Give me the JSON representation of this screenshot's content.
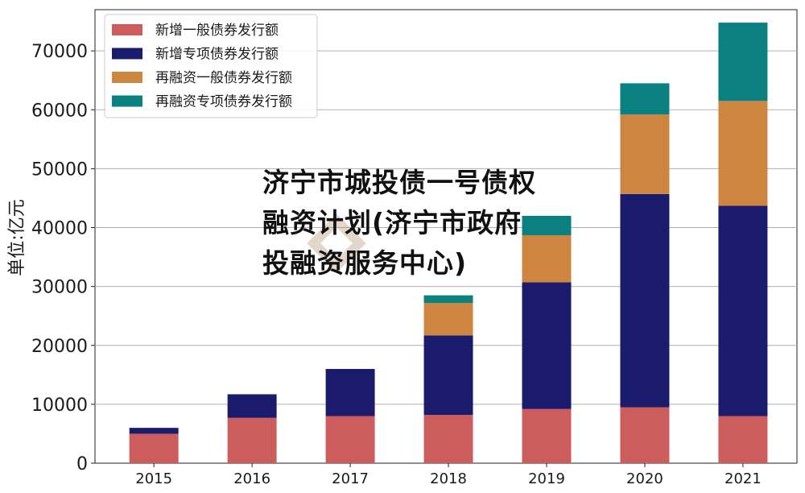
{
  "chart_data": {
    "type": "bar",
    "stacked": true,
    "categories": [
      "2015",
      "2016",
      "2017",
      "2018",
      "2019",
      "2020",
      "2021"
    ],
    "series": [
      {
        "name": "新增一般债券发行额",
        "color": "#cd5c5c",
        "values": [
          5000,
          7700,
          8000,
          8200,
          9200,
          9500,
          8000
        ]
      },
      {
        "name": "新增专项债券发行额",
        "color": "#1b1b6e",
        "values": [
          1000,
          4000,
          8000,
          13500,
          21500,
          36200,
          35700
        ]
      },
      {
        "name": "再融资一般债券发行额",
        "color": "#cd8540",
        "values": [
          0,
          0,
          0,
          5500,
          8000,
          13500,
          17800
        ]
      },
      {
        "name": "再融资专项债券发行额",
        "color": "#0a8080",
        "values": [
          0,
          0,
          0,
          1300,
          3300,
          5300,
          13300
        ]
      }
    ],
    "ylabel": "单位:亿元",
    "ylim": [
      0,
      77000
    ],
    "yticks": [
      0,
      10000,
      20000,
      30000,
      40000,
      50000,
      60000,
      70000
    ],
    "grid": "y",
    "legend": "top-left"
  },
  "overlay": {
    "title_line1": "济宁市城投债一号债权",
    "title_line2": "融资计划(济宁市政府",
    "title_line3": "投融资服务中心)"
  }
}
